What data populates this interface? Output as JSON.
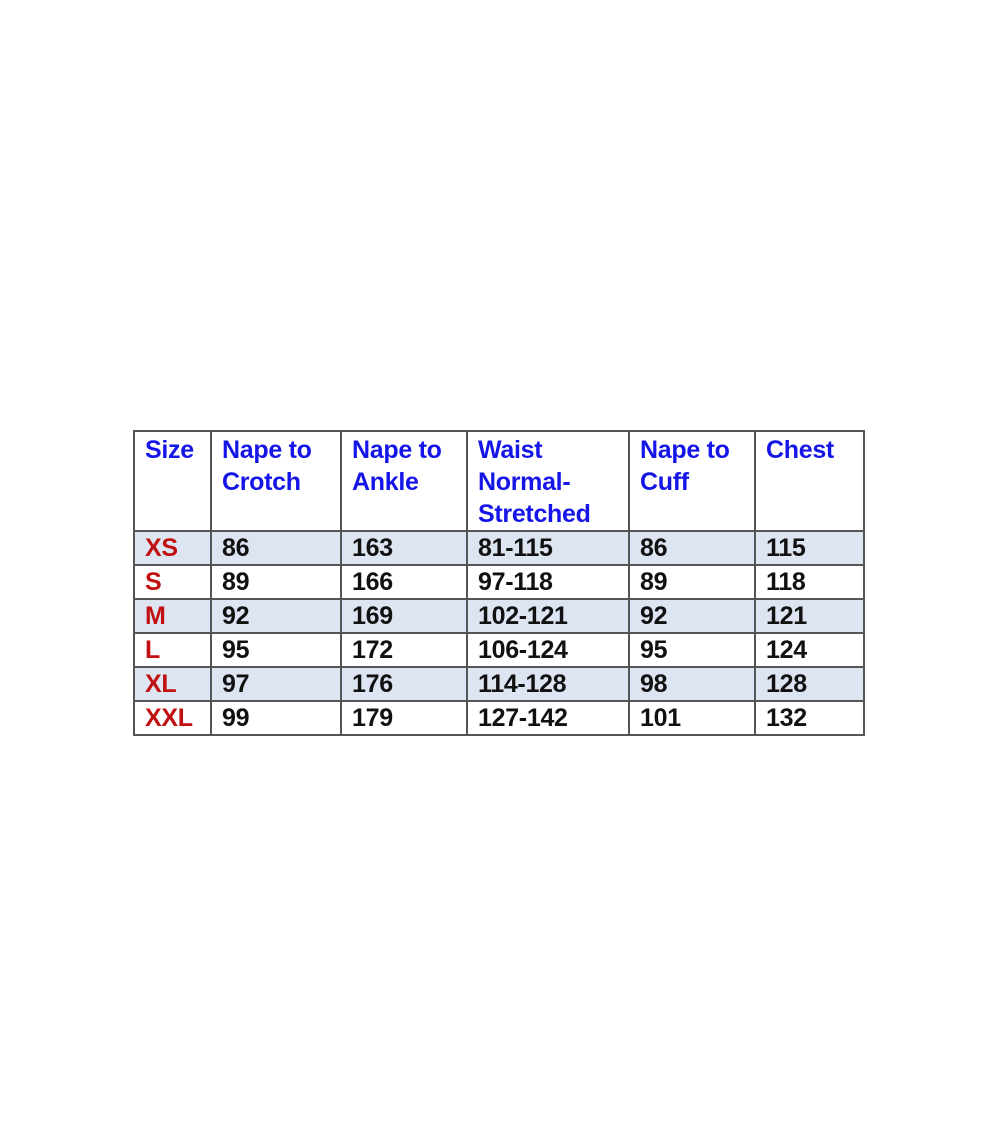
{
  "table": {
    "headers": [
      "Size",
      "Nape to Crotch",
      "Nape to Ankle",
      "Waist Normal-Stretched",
      "Nape to Cuff",
      "Chest"
    ],
    "rows": [
      [
        "XS",
        "86",
        "163",
        "81-115",
        "86",
        "115"
      ],
      [
        "S",
        "89",
        "166",
        "97-118",
        "89",
        "118"
      ],
      [
        "M",
        "92",
        "169",
        "102-121",
        "92",
        "121"
      ],
      [
        "L",
        "95",
        "172",
        "106-124",
        "95",
        "124"
      ],
      [
        "XL",
        "97",
        "176",
        "114-128",
        "98",
        "128"
      ],
      [
        "XXL",
        "99",
        "179",
        "127-142",
        "101",
        "132"
      ]
    ]
  },
  "colors": {
    "header_text": "#1515e8",
    "size_text": "#c01010",
    "shaded_row": "#dde4f2"
  }
}
